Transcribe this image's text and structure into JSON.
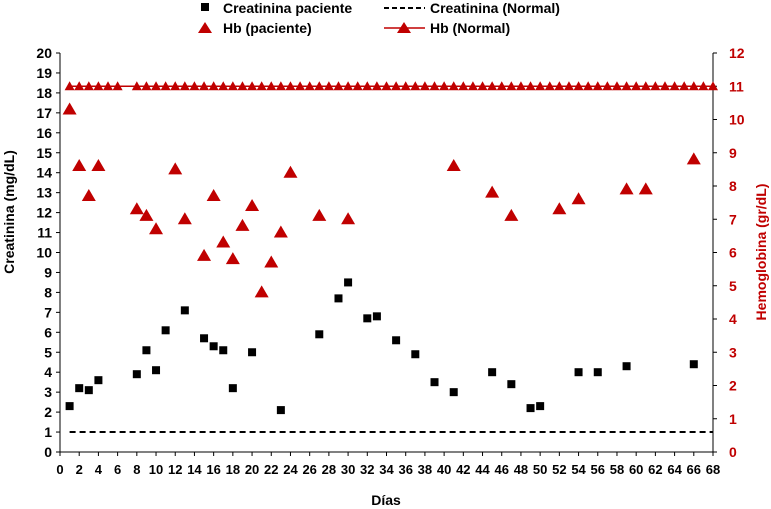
{
  "chart_data": {
    "type": "scatter",
    "xlabel": "Días",
    "ylabel_left": "Creatinina (mg/dL)",
    "ylabel_right": "Hemoglobina (gr/dL)",
    "x_range": [
      0,
      68
    ],
    "x_ticks": [
      0,
      2,
      4,
      6,
      8,
      10,
      12,
      14,
      16,
      18,
      20,
      22,
      24,
      26,
      28,
      30,
      32,
      34,
      36,
      38,
      40,
      42,
      44,
      46,
      48,
      50,
      52,
      54,
      56,
      58,
      60,
      62,
      64,
      66,
      68
    ],
    "y_left_range": [
      0,
      20
    ],
    "y_left_ticks": [
      0,
      1,
      2,
      3,
      4,
      5,
      6,
      7,
      8,
      9,
      10,
      11,
      12,
      13,
      14,
      15,
      16,
      17,
      18,
      19,
      20
    ],
    "y_right_range": [
      0,
      12
    ],
    "y_right_ticks": [
      0,
      1,
      2,
      3,
      4,
      5,
      6,
      7,
      8,
      9,
      10,
      11,
      12
    ],
    "grid": false,
    "legend_position": "top",
    "colors": {
      "creatinine": "#000000",
      "hb": "#c00000"
    },
    "series": [
      {
        "name": "Creatinina paciente",
        "axis": "left",
        "marker": "square",
        "x": [
          1,
          2,
          3,
          4,
          8,
          9,
          10,
          11,
          13,
          15,
          16,
          17,
          18,
          20,
          23,
          27,
          29,
          30,
          32,
          33,
          35,
          37,
          39,
          41,
          45,
          47,
          49,
          50,
          54,
          56,
          59,
          66
        ],
        "y": [
          2.3,
          3.2,
          3.1,
          3.6,
          3.9,
          5.1,
          4.1,
          6.1,
          7.1,
          5.7,
          5.3,
          5.1,
          3.2,
          5.0,
          2.1,
          5.9,
          7.7,
          8.5,
          6.7,
          6.8,
          5.6,
          4.9,
          3.5,
          3.0,
          4.0,
          3.4,
          2.2,
          2.3,
          4.0,
          4.0,
          4.3,
          4.4
        ]
      },
      {
        "name": "Creatinina (Normal)",
        "axis": "left",
        "style": "dashed-line",
        "x": [
          1,
          68
        ],
        "y": [
          1,
          1
        ]
      },
      {
        "name": "Hb (paciente)",
        "axis": "right",
        "marker": "triangle",
        "x": [
          1,
          2,
          3,
          4,
          8,
          9,
          10,
          12,
          13,
          15,
          16,
          17,
          18,
          19,
          20,
          21,
          22,
          23,
          24,
          27,
          30,
          41,
          45,
          47,
          52,
          54,
          59,
          61,
          66
        ],
        "y": [
          10.3,
          8.6,
          7.7,
          8.6,
          7.3,
          7.1,
          6.7,
          8.5,
          7.0,
          5.9,
          7.7,
          6.3,
          5.8,
          6.8,
          7.4,
          4.8,
          5.7,
          6.6,
          8.4,
          7.1,
          7.0,
          8.6,
          7.8,
          7.1,
          7.3,
          7.6,
          7.9,
          7.9,
          8.8
        ]
      },
      {
        "name": "Hb (Normal)",
        "axis": "right",
        "marker": "triangle",
        "style": "line",
        "x": [
          1,
          2,
          3,
          4,
          5,
          6,
          8,
          9,
          10,
          11,
          12,
          13,
          14,
          15,
          16,
          17,
          18,
          19,
          20,
          21,
          22,
          23,
          24,
          25,
          26,
          27,
          28,
          29,
          30,
          31,
          32,
          33,
          34,
          35,
          36,
          37,
          38,
          39,
          40,
          41,
          42,
          43,
          44,
          45,
          46,
          47,
          48,
          49,
          50,
          51,
          52,
          53,
          54,
          55,
          56,
          57,
          58,
          59,
          60,
          61,
          62,
          63,
          64,
          65,
          66,
          67,
          68
        ],
        "y": [
          11,
          11,
          11,
          11,
          11,
          11,
          11,
          11,
          11,
          11,
          11,
          11,
          11,
          11,
          11,
          11,
          11,
          11,
          11,
          11,
          11,
          11,
          11,
          11,
          11,
          11,
          11,
          11,
          11,
          11,
          11,
          11,
          11,
          11,
          11,
          11,
          11,
          11,
          11,
          11,
          11,
          11,
          11,
          11,
          11,
          11,
          11,
          11,
          11,
          11,
          11,
          11,
          11,
          11,
          11,
          11,
          11,
          11,
          11,
          11,
          11,
          11,
          11,
          11,
          11,
          11,
          11
        ]
      }
    ]
  }
}
